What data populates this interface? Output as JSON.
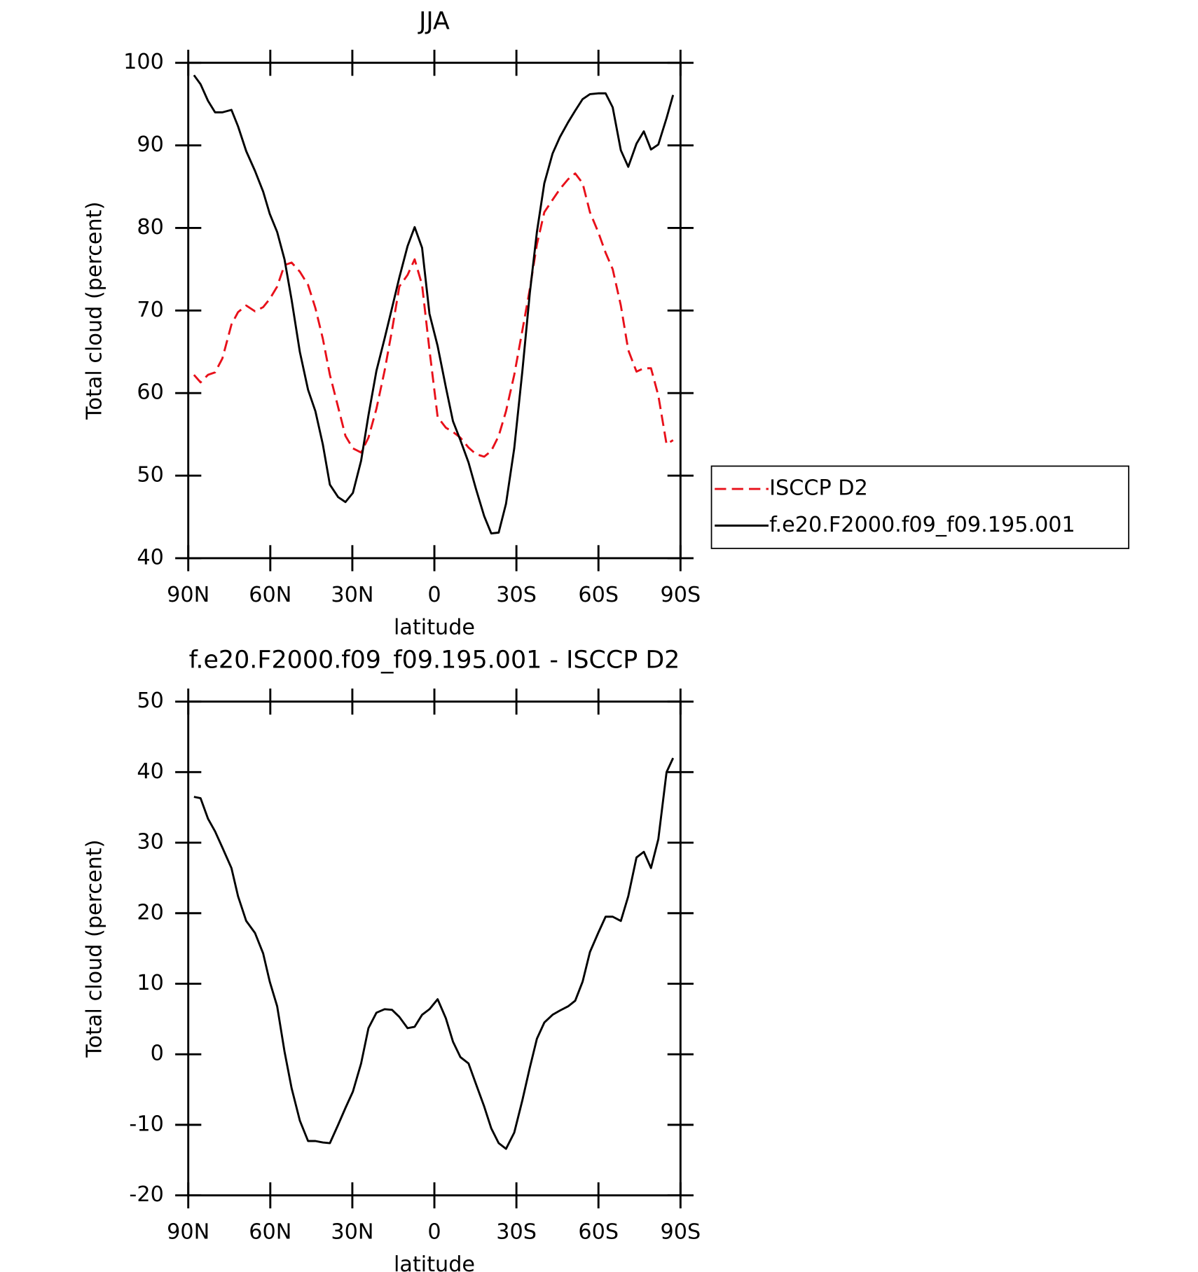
{
  "chart_data": [
    {
      "type": "line",
      "title": "JJA",
      "x_label": "latitude",
      "y_label": "Total cloud (percent)",
      "x": [
        87.9,
        85.5,
        82.8,
        80.2,
        77.5,
        74.2,
        71.8,
        68.8,
        65.6,
        62.6,
        60.2,
        57.5,
        54.8,
        52.2,
        49.2,
        46.2,
        43.5,
        40.8,
        38.2,
        35.2,
        32.5,
        29.8,
        26.8,
        24.1,
        21.2,
        18.2,
        15.5,
        12.8,
        9.8,
        7.2,
        4.5,
        1.8,
        -1.2,
        -4.2,
        -6.8,
        -9.5,
        -12.5,
        -15.2,
        -18.2,
        -20.8,
        -23.5,
        -26.2,
        -29.2,
        -32.2,
        -34.9,
        -37.5,
        -40.2,
        -43.2,
        -45.9,
        -48.9,
        -51.5,
        -54.2,
        -56.9,
        -59.9,
        -62.6,
        -65.2,
        -68.2,
        -70.9,
        -73.9,
        -76.6,
        -79.2,
        -81.9,
        -84.9,
        -87.3
      ],
      "series": [
        {
          "name": "ISCCP D2",
          "color": "#e8101a",
          "line_style": "dashed",
          "values": [
            62.2,
            61.3,
            62.2,
            62.5,
            64.2,
            68.3,
            69.8,
            70.6,
            69.9,
            70.4,
            71.4,
            72.9,
            75.5,
            75.8,
            74.7,
            73.1,
            70.3,
            66.6,
            62.2,
            58.3,
            54.8,
            53.3,
            52.8,
            54.6,
            58.1,
            62.7,
            67.6,
            72.9,
            74.3,
            76.2,
            73.1,
            65.2,
            57.1,
            55.8,
            55.3,
            54.6,
            53.4,
            52.6,
            52.3,
            53.0,
            54.8,
            57.8,
            62.2,
            67.6,
            72.6,
            78.0,
            81.9,
            83.4,
            84.7,
            85.9,
            86.6,
            85.4,
            81.9,
            79.5,
            77.0,
            75.0,
            70.6,
            65.2,
            62.6,
            63.0,
            63.0,
            59.7,
            53.8,
            54.3
          ]
        },
        {
          "name": "f.e20.F2000.f09_f09.195.001",
          "color": "#000000",
          "line_style": "solid",
          "values": [
            98.5,
            97.4,
            95.4,
            94.0,
            94.0,
            94.3,
            92.3,
            89.3,
            86.9,
            84.4,
            81.7,
            79.5,
            76.2,
            71.3,
            65.0,
            60.4,
            57.8,
            53.8,
            48.9,
            47.4,
            46.8,
            47.9,
            51.8,
            57.3,
            62.7,
            66.6,
            70.3,
            74.0,
            77.8,
            80.1,
            77.6,
            69.6,
            65.7,
            60.7,
            56.6,
            54.3,
            51.6,
            48.4,
            45.1,
            43.0,
            43.1,
            46.6,
            53.3,
            62.7,
            72.1,
            79.5,
            85.4,
            89.0,
            91.0,
            92.8,
            94.2,
            95.6,
            96.2,
            96.3,
            96.3,
            94.6,
            89.4,
            87.4,
            90.2,
            91.7,
            89.5,
            90.1,
            93.3,
            96.1
          ]
        }
      ],
      "xlim": [
        90,
        -90
      ],
      "xticks": [
        {
          "value": 90,
          "label": "90N"
        },
        {
          "value": 60,
          "label": "60N"
        },
        {
          "value": 30,
          "label": "30N"
        },
        0,
        {
          "value": -30,
          "label": "30S"
        },
        {
          "value": -60,
          "label": "60S"
        },
        {
          "value": -90,
          "label": "90S"
        }
      ],
      "ylim": [
        40,
        100
      ],
      "yticks": [
        40,
        50,
        60,
        70,
        80,
        90,
        100
      ],
      "legend": "right"
    },
    {
      "type": "line",
      "title": "f.e20.F2000.f09_f09.195.001 - ISCCP D2",
      "x_label": "latitude",
      "y_label": "Total cloud (percent)",
      "x": [
        87.9,
        85.5,
        82.8,
        80.2,
        77.5,
        74.2,
        71.8,
        68.8,
        65.6,
        62.6,
        60.2,
        57.5,
        54.8,
        52.2,
        49.2,
        46.2,
        43.5,
        40.8,
        38.2,
        35.2,
        32.5,
        29.8,
        26.8,
        24.1,
        21.2,
        18.2,
        15.5,
        12.8,
        9.8,
        7.2,
        4.5,
        1.8,
        -1.2,
        -4.2,
        -6.8,
        -9.5,
        -12.5,
        -15.2,
        -18.2,
        -20.8,
        -23.5,
        -26.2,
        -29.2,
        -32.2,
        -34.9,
        -37.5,
        -40.2,
        -43.2,
        -45.9,
        -48.9,
        -51.5,
        -54.2,
        -56.9,
        -59.9,
        -62.6,
        -65.2,
        -68.2,
        -70.9,
        -73.9,
        -76.6,
        -79.2,
        -81.9,
        -84.9,
        -87.3
      ],
      "values": [
        36.5,
        36.3,
        33.4,
        31.6,
        29.3,
        26.4,
        22.4,
        18.9,
        17.2,
        14.3,
        10.3,
        6.8,
        0.4,
        -4.8,
        -9.4,
        -12.3,
        -12.3,
        -12.5,
        -12.6,
        -10.0,
        -7.6,
        -5.3,
        -1.3,
        3.7,
        5.9,
        6.4,
        6.3,
        5.3,
        3.7,
        3.9,
        5.6,
        6.4,
        7.8,
        5.1,
        1.8,
        -0.4,
        -1.3,
        -4.2,
        -7.4,
        -10.5,
        -12.6,
        -13.4,
        -11.1,
        -6.5,
        -1.9,
        2.2,
        4.5,
        5.6,
        6.2,
        6.8,
        7.6,
        10.3,
        14.5,
        17.2,
        19.5,
        19.5,
        18.9,
        22.4,
        27.9,
        28.7,
        26.4,
        30.5,
        40.0,
        42.0
      ],
      "color": "#000000",
      "line_style": "solid",
      "xlim": [
        90,
        -90
      ],
      "xticks": [
        {
          "value": 90,
          "label": "90N"
        },
        {
          "value": 60,
          "label": "60N"
        },
        {
          "value": 30,
          "label": "30N"
        },
        0,
        {
          "value": -30,
          "label": "30S"
        },
        {
          "value": -60,
          "label": "60S"
        },
        {
          "value": -90,
          "label": "90S"
        }
      ],
      "ylim": [
        -20,
        50
      ],
      "yticks": [
        -20,
        -10,
        0,
        10,
        20,
        30,
        40,
        50
      ]
    }
  ]
}
